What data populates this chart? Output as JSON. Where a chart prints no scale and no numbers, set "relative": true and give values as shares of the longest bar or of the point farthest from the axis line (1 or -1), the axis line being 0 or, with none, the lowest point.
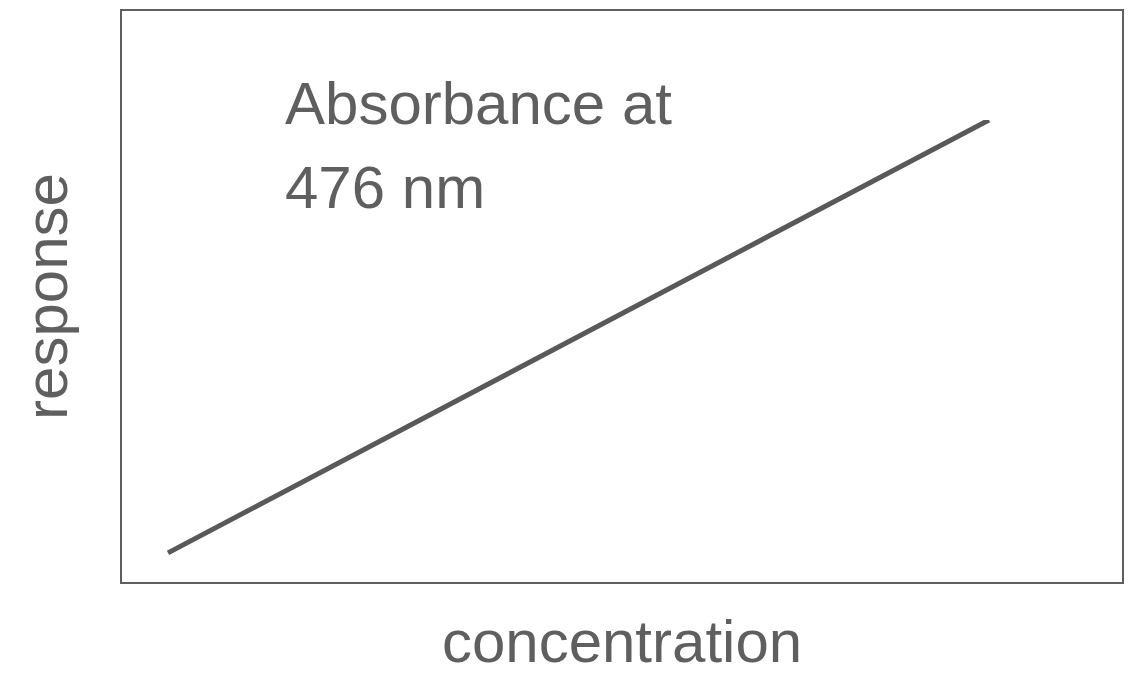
{
  "chart_data": {
    "type": "line",
    "relative": true,
    "xlabel": "concentration",
    "ylabel": "response",
    "categories": [
      null,
      null
    ],
    "series": [
      {
        "color": "#595959",
        "values": [
          0.065,
          1
        ]
      }
    ],
    "marker": "none",
    "line_style": "solid",
    "annotations": [
      "Absorbance at 476 nm"
    ]
  }
}
